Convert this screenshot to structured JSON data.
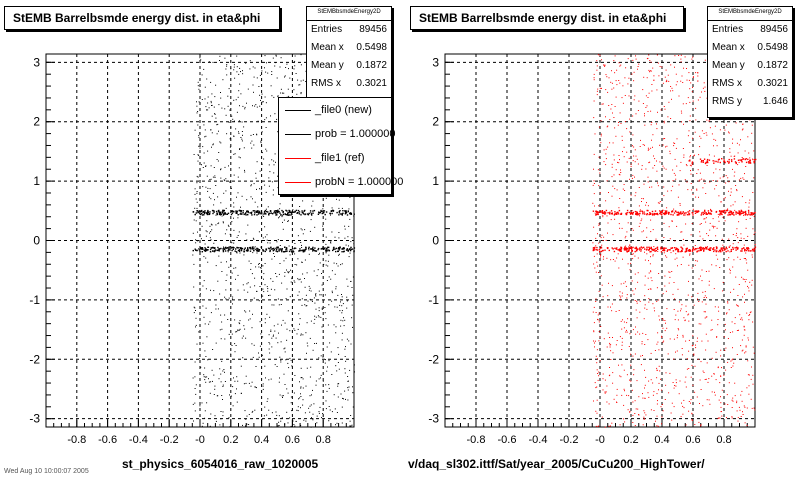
{
  "chart_data": [
    {
      "type": "scatter",
      "title": "StEMB Barrelbsmde energy dist. in eta&phi",
      "xlim": [
        -1,
        1
      ],
      "ylim": [
        -3.14,
        3.14
      ],
      "x_ticks": [
        "-0.8",
        "-0.6",
        "-0.4",
        "-0.2",
        "-0",
        "0.2",
        "0.4",
        "0.6",
        "0.8"
      ],
      "y_ticks": [
        "3",
        "2",
        "1",
        "0",
        "-1",
        "-2",
        "-3"
      ],
      "grid": true,
      "marker_color": "#000000",
      "stats": {
        "name": "StEMBbsmdeEnergy2D",
        "rows": [
          {
            "label": "Entries",
            "value": "89456"
          },
          {
            "label": "Mean x",
            "value": "0.5498"
          },
          {
            "label": "Mean y",
            "value": "0.1872"
          },
          {
            "label": "RMS x",
            "value": "0.3021"
          }
        ]
      },
      "legend": {
        "placement": "top-right",
        "entries": [
          {
            "label": "_file0 (new)",
            "color": "#000000"
          },
          {
            "label": "prob = 1.000000",
            "color": "#000000"
          },
          {
            "label": "_file1 (ref)",
            "color": "#ff0000"
          },
          {
            "label": "probN = 1.000000",
            "color": "#ff0000"
          }
        ]
      },
      "data_region": {
        "x": [
          -0.05,
          1.0
        ],
        "y": [
          -3.14,
          3.14
        ]
      },
      "dense_bands_y": [
        0.48,
        -0.14
      ]
    },
    {
      "type": "scatter",
      "title": "StEMB Barrelbsmde energy dist. in eta&phi",
      "xlim": [
        -1,
        1
      ],
      "ylim": [
        -3.14,
        3.14
      ],
      "x_ticks": [
        "-0.8",
        "-0.6",
        "-0.4",
        "-0.2",
        "-0",
        "0.2",
        "0.4",
        "0.6",
        "0.8"
      ],
      "y_ticks": [
        "3",
        "2",
        "1",
        "0",
        "-1",
        "-2",
        "-3"
      ],
      "grid": true,
      "marker_color": "#ff0000",
      "stats": {
        "name": "StEMBbsmdeEnergy2D",
        "rows": [
          {
            "label": "Entries",
            "value": "89456"
          },
          {
            "label": "Mean x",
            "value": "0.5498"
          },
          {
            "label": "Mean y",
            "value": "0.1872"
          },
          {
            "label": "RMS x",
            "value": "0.3021"
          },
          {
            "label": "RMS y",
            "value": "1.646"
          }
        ]
      },
      "data_region": {
        "x": [
          -0.05,
          1.0
        ],
        "y": [
          -3.14,
          3.14
        ]
      },
      "dense_bands_y": [
        0.48,
        -0.14,
        1.35
      ]
    }
  ],
  "bottom_labels": {
    "left": "st_physics_6054016_raw_1020005",
    "right": "v/daq_sl302.ittf/Sat/year_2005/CuCu200_HighTower/"
  },
  "footer": "Wed Aug 10 10:00:07 2005"
}
